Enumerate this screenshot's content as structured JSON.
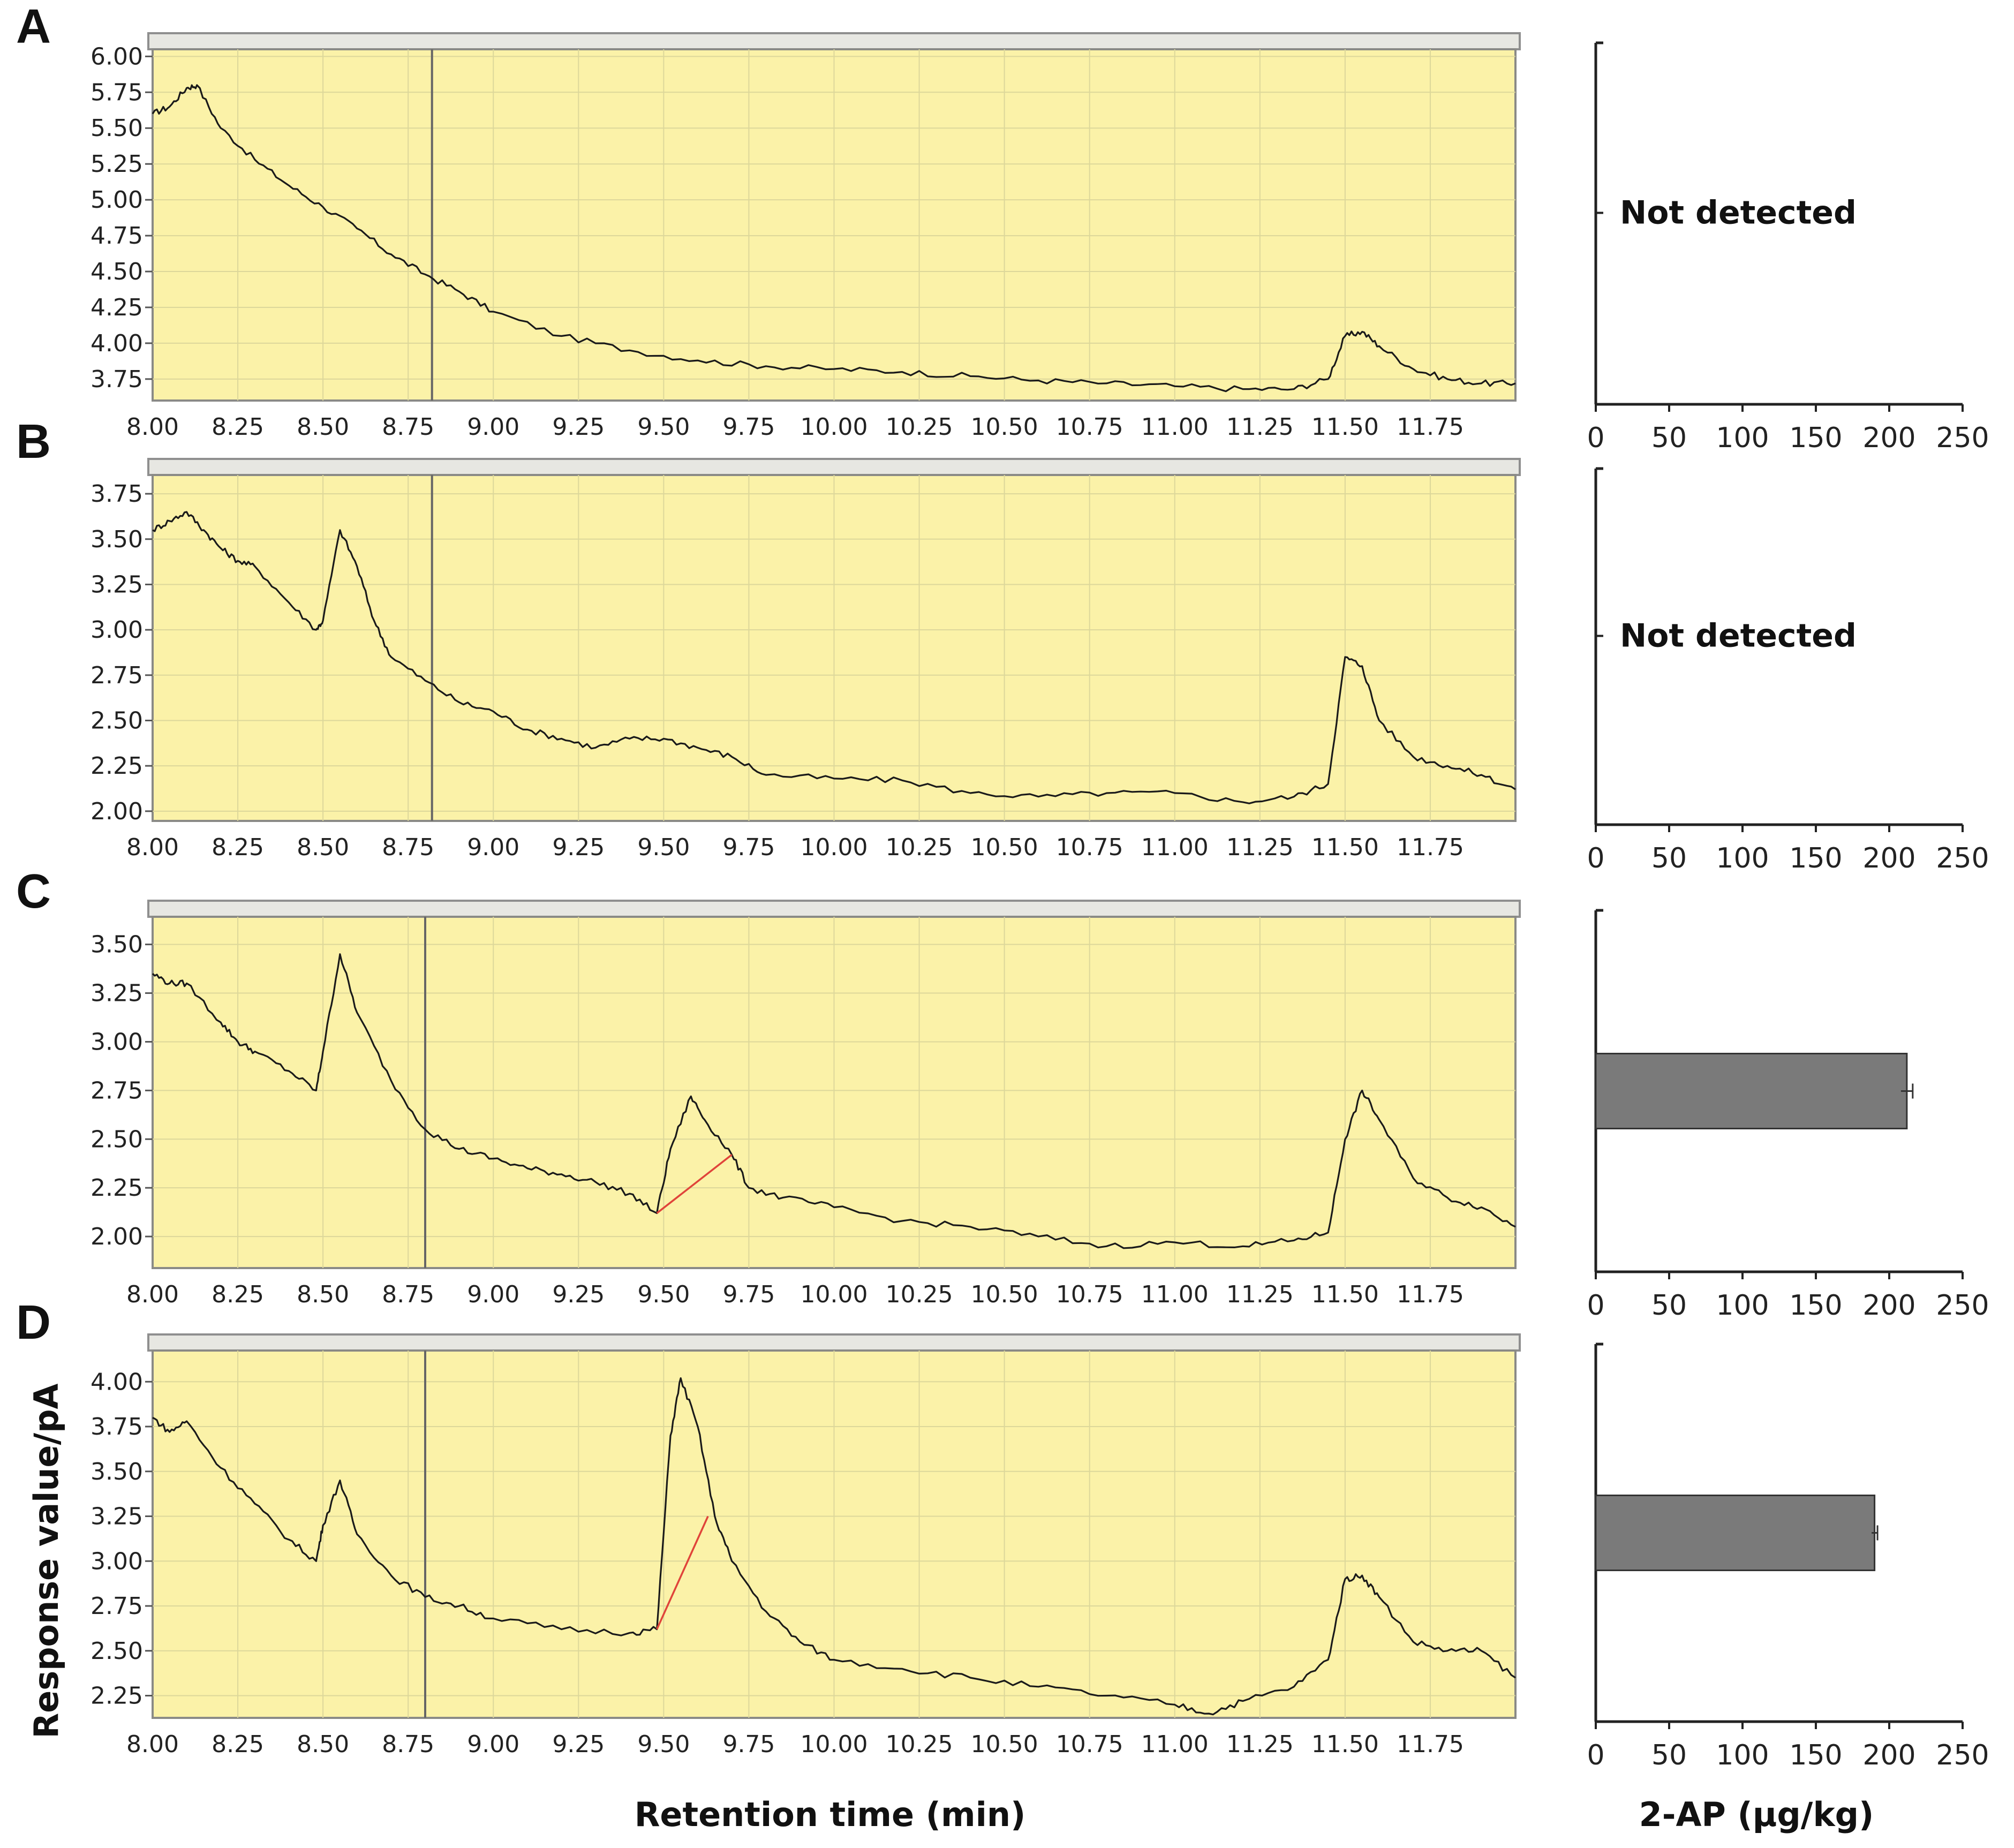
{
  "figure": {
    "x_axis_title": "Retention time (min)",
    "y_axis_title": "Response value/pA",
    "bar_axis_title": "2-AP (μg/kg)",
    "colors": {
      "plot_bg": "#fbf2a8",
      "grid": "#dcd79a",
      "trace": "#1a1a1a",
      "baseline": "#e0443a",
      "bar_fill": "#7a7a7a",
      "marker_line": "#666666"
    }
  },
  "chart_data": [
    {
      "panel": "A",
      "type": "line",
      "xlim": [
        8.0,
        12.0
      ],
      "ylim": [
        3.63,
        6.02
      ],
      "x_ticks": [
        "8.00",
        "8.25",
        "8.50",
        "8.75",
        "9.00",
        "9.25",
        "9.50",
        "9.75",
        "10.00",
        "10.25",
        "10.50",
        "10.75",
        "11.00",
        "11.25",
        "11.50",
        "11.75"
      ],
      "y_ticks": [
        "6.00",
        "5.75",
        "5.50",
        "5.25",
        "5.00",
        "4.75",
        "4.50",
        "4.25",
        "4.00",
        "3.75"
      ],
      "marker_x": 8.82,
      "series": [
        {
          "x": [
            8.0,
            8.05,
            8.1,
            8.13,
            8.2,
            8.3,
            8.4,
            8.5,
            8.6,
            8.7,
            8.8,
            8.9,
            9.0,
            9.2,
            9.4,
            9.6,
            9.8,
            10.0,
            10.2,
            10.4,
            10.6,
            10.8,
            11.0,
            11.2,
            11.35,
            11.45,
            11.5,
            11.55,
            11.6,
            11.7,
            11.8,
            11.9,
            12.0
          ],
          "y": [
            5.6,
            5.65,
            5.78,
            5.8,
            5.5,
            5.28,
            5.1,
            4.95,
            4.8,
            4.62,
            4.48,
            4.36,
            4.22,
            4.05,
            3.95,
            3.88,
            3.84,
            3.82,
            3.8,
            3.77,
            3.74,
            3.72,
            3.7,
            3.68,
            3.68,
            3.75,
            4.05,
            4.08,
            3.98,
            3.82,
            3.75,
            3.72,
            3.72
          ]
        }
      ],
      "bar": {
        "label": "Not detected",
        "value": null,
        "error": null,
        "xlim": [
          0,
          250
        ],
        "x_ticks": [
          "0",
          "50",
          "100",
          "150",
          "200",
          "250"
        ]
      }
    },
    {
      "panel": "B",
      "type": "line",
      "xlim": [
        8.0,
        12.0
      ],
      "ylim": [
        1.97,
        3.83
      ],
      "x_ticks": [
        "8.00",
        "8.25",
        "8.50",
        "8.75",
        "9.00",
        "9.25",
        "9.50",
        "9.75",
        "10.00",
        "10.25",
        "10.50",
        "10.75",
        "11.00",
        "11.25",
        "11.50",
        "11.75"
      ],
      "y_ticks": [
        "3.75",
        "3.50",
        "3.25",
        "3.00",
        "2.75",
        "2.50",
        "2.25",
        "2.00"
      ],
      "marker_x": 8.82,
      "series": [
        {
          "x": [
            8.0,
            8.05,
            8.1,
            8.15,
            8.2,
            8.25,
            8.3,
            8.4,
            8.48,
            8.5,
            8.55,
            8.6,
            8.65,
            8.7,
            8.8,
            8.9,
            9.0,
            9.1,
            9.2,
            9.3,
            9.4,
            9.5,
            9.6,
            9.7,
            9.8,
            10.0,
            10.2,
            10.4,
            10.6,
            10.8,
            11.0,
            11.2,
            11.35,
            11.45,
            11.5,
            11.55,
            11.6,
            11.7,
            11.8,
            11.9,
            12.0
          ],
          "y": [
            3.55,
            3.6,
            3.65,
            3.55,
            3.45,
            3.38,
            3.35,
            3.15,
            3.0,
            3.05,
            3.55,
            3.35,
            3.05,
            2.85,
            2.72,
            2.6,
            2.55,
            2.45,
            2.4,
            2.35,
            2.4,
            2.4,
            2.35,
            2.3,
            2.2,
            2.18,
            2.17,
            2.1,
            2.08,
            2.1,
            2.1,
            2.05,
            2.08,
            2.15,
            2.85,
            2.8,
            2.5,
            2.3,
            2.25,
            2.2,
            2.12
          ]
        }
      ],
      "bar": {
        "label": "Not detected",
        "value": null,
        "error": null,
        "xlim": [
          0,
          250
        ],
        "x_ticks": [
          "0",
          "50",
          "100",
          "150",
          "200",
          "250"
        ]
      }
    },
    {
      "panel": "C",
      "type": "line",
      "xlim": [
        8.0,
        12.0
      ],
      "ylim": [
        1.86,
        3.62
      ],
      "x_ticks": [
        "8.00",
        "8.25",
        "8.50",
        "8.75",
        "9.00",
        "9.25",
        "9.50",
        "9.75",
        "10.00",
        "10.25",
        "10.50",
        "10.75",
        "11.00",
        "11.25",
        "11.50",
        "11.75"
      ],
      "y_ticks": [
        "3.50",
        "3.25",
        "3.00",
        "2.75",
        "2.50",
        "2.25",
        "2.00"
      ],
      "marker_x": 8.8,
      "series": [
        {
          "x": [
            8.0,
            8.05,
            8.1,
            8.2,
            8.25,
            8.3,
            8.4,
            8.48,
            8.5,
            8.55,
            8.6,
            8.7,
            8.8,
            8.9,
            9.0,
            9.1,
            9.2,
            9.3,
            9.4,
            9.48,
            9.52,
            9.58,
            9.62,
            9.7,
            9.75,
            9.85,
            10.0,
            10.2,
            10.4,
            10.6,
            10.8,
            11.0,
            11.2,
            11.35,
            11.45,
            11.5,
            11.55,
            11.6,
            11.7,
            11.8,
            11.9,
            12.0
          ],
          "y": [
            3.35,
            3.3,
            3.3,
            3.1,
            3.0,
            2.95,
            2.85,
            2.75,
            2.95,
            3.45,
            3.15,
            2.8,
            2.55,
            2.45,
            2.4,
            2.35,
            2.32,
            2.28,
            2.22,
            2.12,
            2.45,
            2.72,
            2.6,
            2.42,
            2.25,
            2.2,
            2.15,
            2.08,
            2.05,
            2.0,
            1.95,
            1.97,
            1.95,
            1.98,
            2.02,
            2.5,
            2.75,
            2.6,
            2.3,
            2.2,
            2.15,
            2.05
          ]
        }
      ],
      "baseline": {
        "x": [
          9.48,
          9.7
        ],
        "y": [
          2.12,
          2.42
        ]
      },
      "bar": {
        "label": "",
        "value": 212,
        "error": 4,
        "xlim": [
          0,
          250
        ],
        "x_ticks": [
          "0",
          "50",
          "100",
          "150",
          "200",
          "250"
        ]
      }
    },
    {
      "panel": "D",
      "type": "line",
      "xlim": [
        8.0,
        12.0
      ],
      "ylim": [
        2.15,
        4.15
      ],
      "x_ticks": [
        "8.00",
        "8.25",
        "8.50",
        "8.75",
        "9.00",
        "9.25",
        "9.50",
        "9.75",
        "10.00",
        "10.25",
        "10.50",
        "10.75",
        "11.00",
        "11.25",
        "11.50",
        "11.75"
      ],
      "y_ticks": [
        "4.00",
        "3.75",
        "3.50",
        "3.25",
        "3.00",
        "2.75",
        "2.50",
        "2.25"
      ],
      "marker_x": 8.8,
      "series": [
        {
          "x": [
            8.0,
            8.05,
            8.1,
            8.2,
            8.3,
            8.4,
            8.48,
            8.5,
            8.55,
            8.6,
            8.7,
            8.8,
            8.9,
            9.0,
            9.2,
            9.4,
            9.48,
            9.52,
            9.55,
            9.6,
            9.65,
            9.7,
            9.8,
            9.9,
            10.0,
            10.2,
            10.4,
            10.6,
            10.8,
            11.0,
            11.1,
            11.2,
            11.35,
            11.45,
            11.5,
            11.55,
            11.6,
            11.7,
            11.8,
            11.9,
            12.0
          ],
          "y": [
            3.8,
            3.72,
            3.78,
            3.52,
            3.32,
            3.12,
            3.0,
            3.2,
            3.45,
            3.15,
            2.92,
            2.8,
            2.75,
            2.68,
            2.62,
            2.6,
            2.62,
            3.7,
            4.02,
            3.75,
            3.25,
            3.0,
            2.72,
            2.55,
            2.45,
            2.4,
            2.35,
            2.3,
            2.25,
            2.2,
            2.15,
            2.22,
            2.3,
            2.45,
            2.9,
            2.92,
            2.8,
            2.55,
            2.5,
            2.5,
            2.35
          ]
        }
      ],
      "baseline": {
        "x": [
          9.48,
          9.63
        ],
        "y": [
          2.62,
          3.25
        ]
      },
      "bar": {
        "label": "",
        "value": 190,
        "error": 2,
        "xlim": [
          0,
          250
        ],
        "x_ticks": [
          "0",
          "50",
          "100",
          "150",
          "200",
          "250"
        ]
      }
    }
  ]
}
